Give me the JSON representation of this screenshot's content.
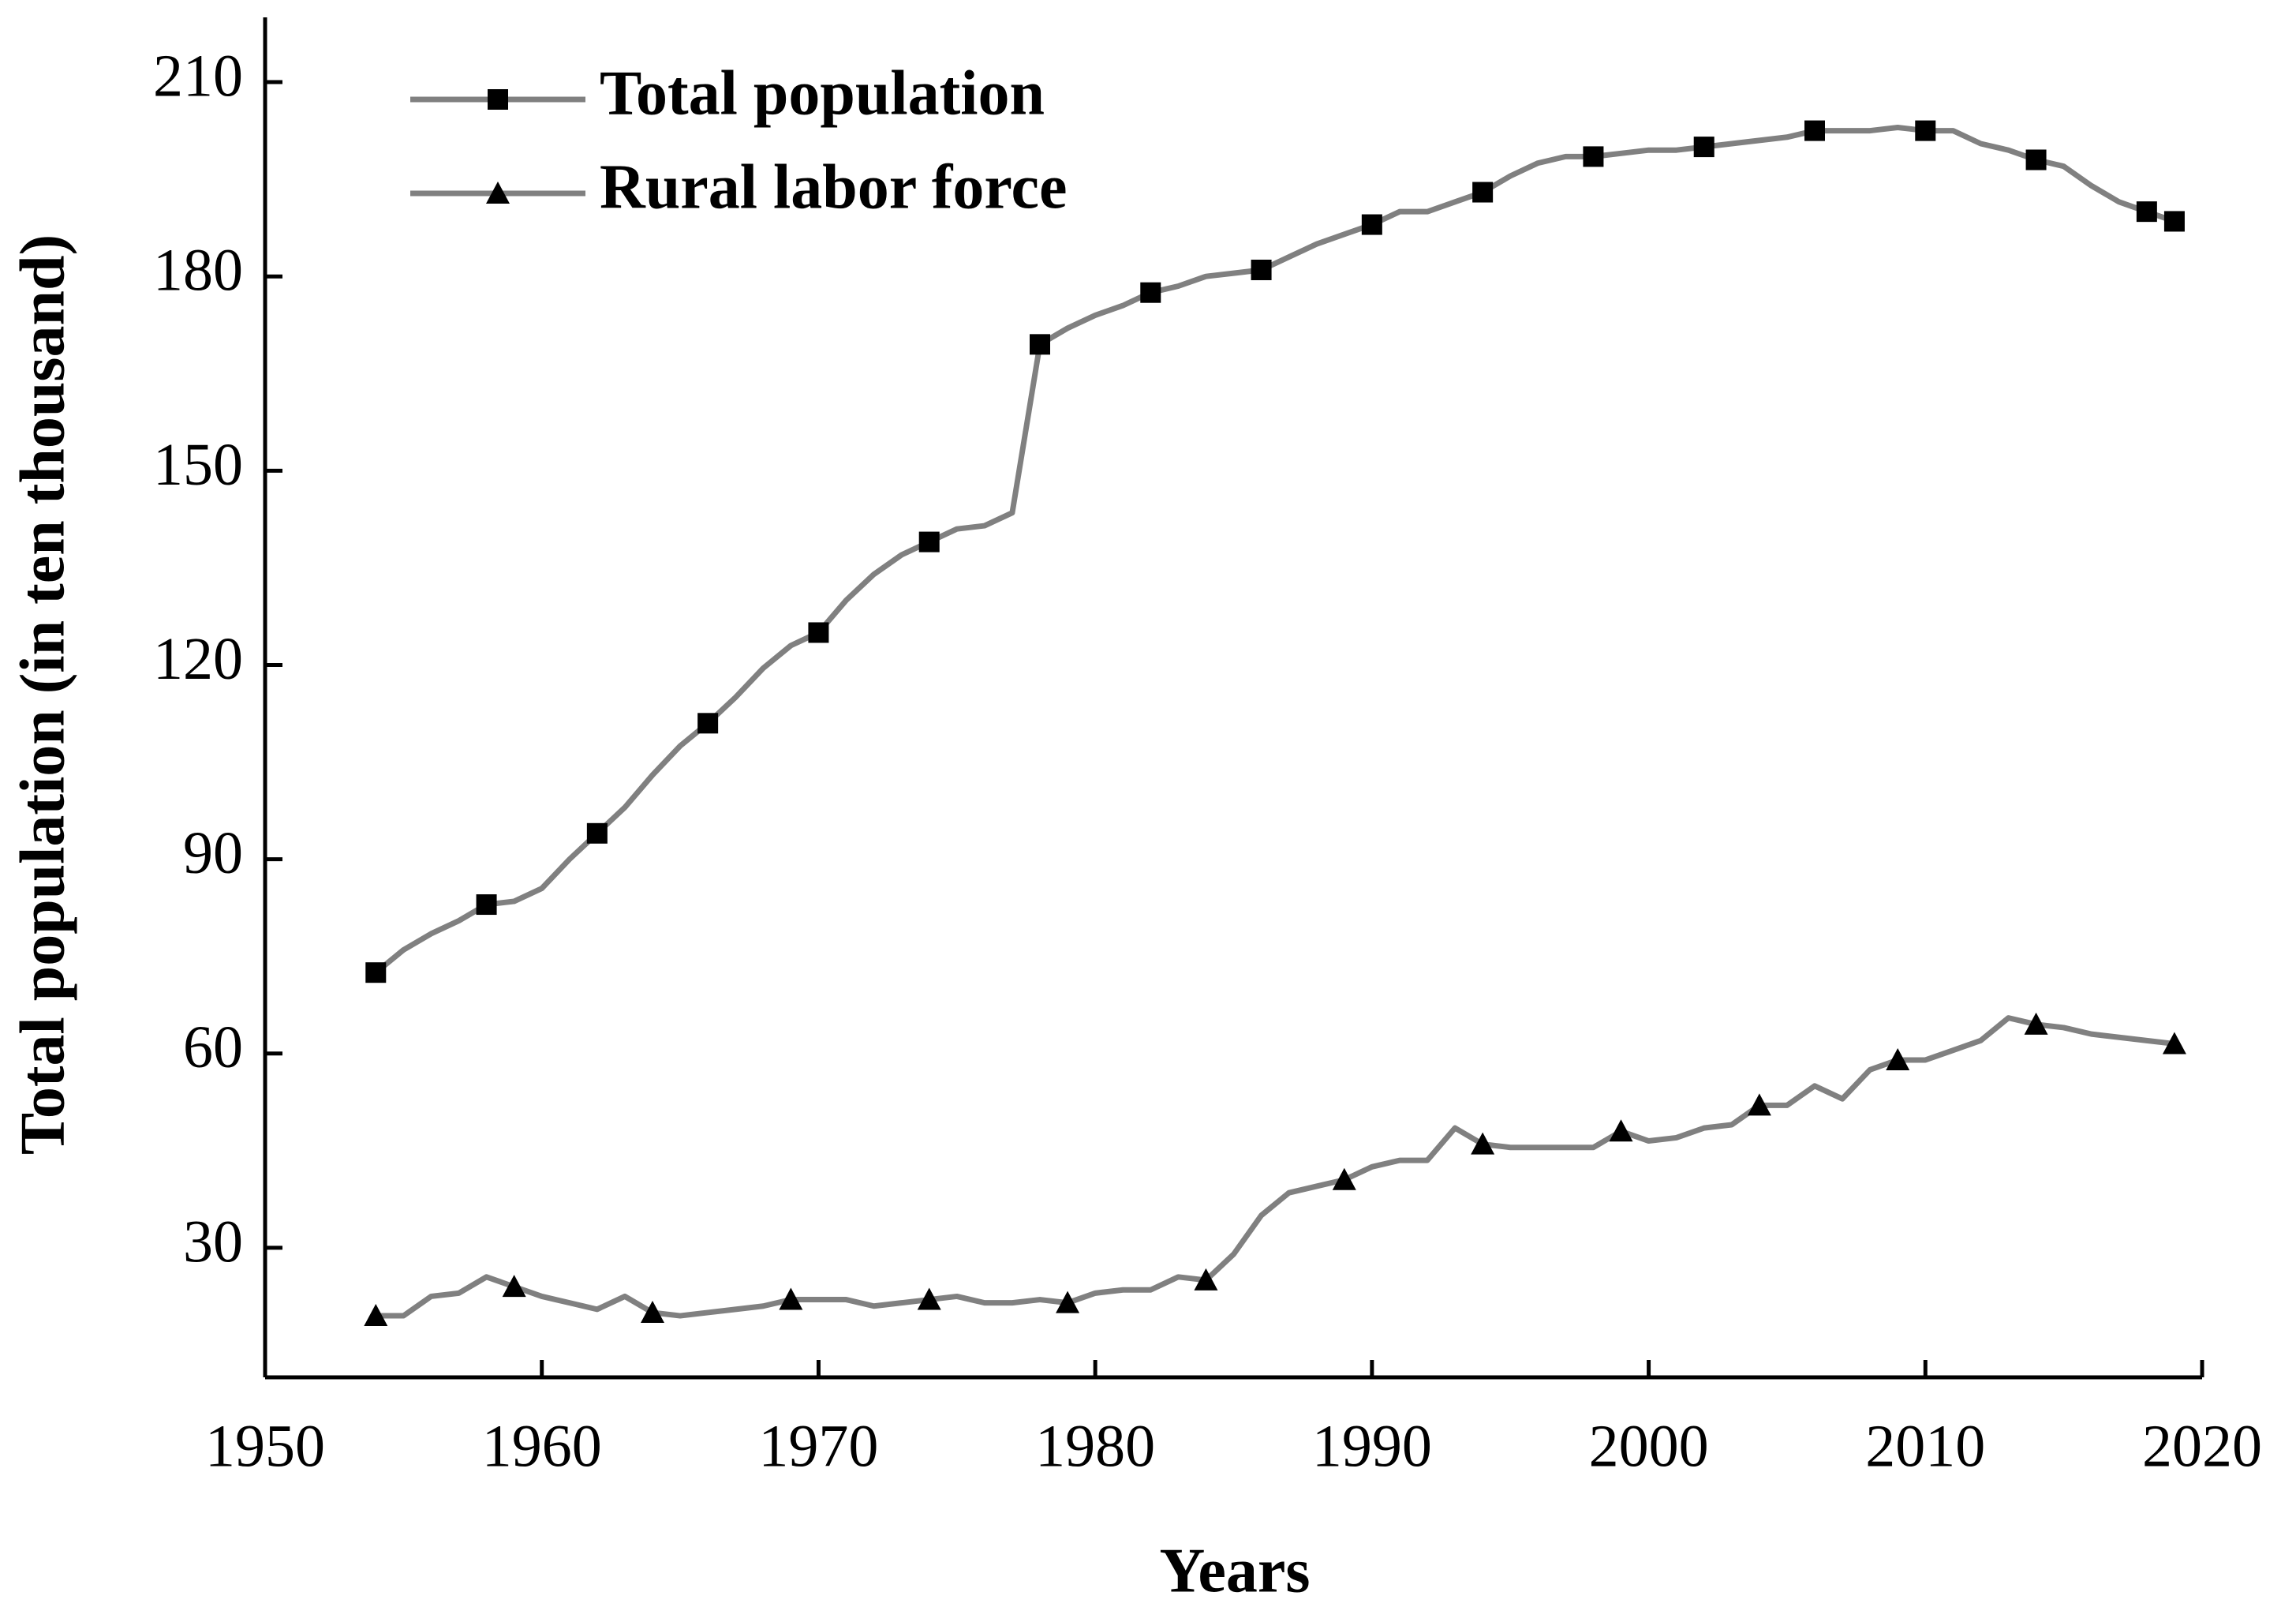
{
  "chart_data": {
    "type": "line",
    "x_label": "Years",
    "y_label": "Total population (in ten thousand)",
    "x": [
      1954,
      1955,
      1956,
      1957,
      1958,
      1959,
      1960,
      1961,
      1962,
      1963,
      1964,
      1965,
      1966,
      1967,
      1968,
      1969,
      1970,
      1971,
      1972,
      1973,
      1974,
      1975,
      1976,
      1977,
      1978,
      1979,
      1980,
      1981,
      1982,
      1983,
      1984,
      1985,
      1986,
      1987,
      1988,
      1989,
      1990,
      1991,
      1992,
      1993,
      1994,
      1995,
      1996,
      1997,
      1998,
      1999,
      2000,
      2001,
      2002,
      2003,
      2004,
      2005,
      2006,
      2007,
      2008,
      2009,
      2010,
      2011,
      2012,
      2013,
      2014,
      2015,
      2016,
      2017,
      2018,
      2019
    ],
    "series": [
      {
        "name": "Total population",
        "color": "#808080",
        "marker": "square",
        "values": [
          72.5,
          76,
          78.5,
          80.5,
          83,
          83.5,
          85.5,
          90,
          94,
          98,
          103,
          107.5,
          111,
          115,
          119.5,
          123,
          125,
          130,
          134,
          137,
          139,
          141,
          141.5,
          143.5,
          169.5,
          172,
          174,
          175.5,
          177.5,
          178.5,
          180,
          180.5,
          181,
          183,
          185,
          186.5,
          188,
          190,
          190,
          191.5,
          193,
          195.5,
          197.5,
          198.5,
          198.5,
          199,
          199.5,
          199.5,
          200,
          200.5,
          201,
          201.5,
          202.5,
          202.5,
          202.5,
          203,
          202.5,
          202.5,
          200.5,
          199.5,
          198,
          197,
          194,
          191.5,
          190,
          188.5
        ]
      },
      {
        "name": "Rural labor force",
        "color": "#808080",
        "marker": "triangle",
        "values": [
          19.5,
          19.5,
          22.5,
          23,
          25.5,
          24,
          22.5,
          21.5,
          20.5,
          22.5,
          20,
          19.5,
          20,
          20.5,
          21,
          22,
          22,
          22,
          21,
          21.5,
          22,
          22.5,
          21.5,
          21.5,
          22,
          21.5,
          23,
          23.5,
          23.5,
          25.5,
          25,
          29,
          35,
          38.5,
          39.5,
          40.5,
          42.5,
          43.5,
          43.5,
          48.5,
          46,
          45.5,
          45.5,
          45.5,
          45.5,
          48,
          46.5,
          47,
          48.5,
          49,
          52,
          52,
          55,
          53,
          57.5,
          59,
          59,
          60.5,
          62,
          65.5,
          64.5,
          64,
          63,
          62.5,
          62,
          61.5
        ]
      }
    ],
    "xlim": [
      1950,
      2020
    ],
    "xticks": [
      1950,
      1960,
      1970,
      1980,
      1990,
      2000,
      2010,
      2020
    ],
    "ylim": [
      10,
      220
    ],
    "yticks": [
      30,
      60,
      90,
      120,
      150,
      180,
      210
    ],
    "legend": "upper left"
  }
}
